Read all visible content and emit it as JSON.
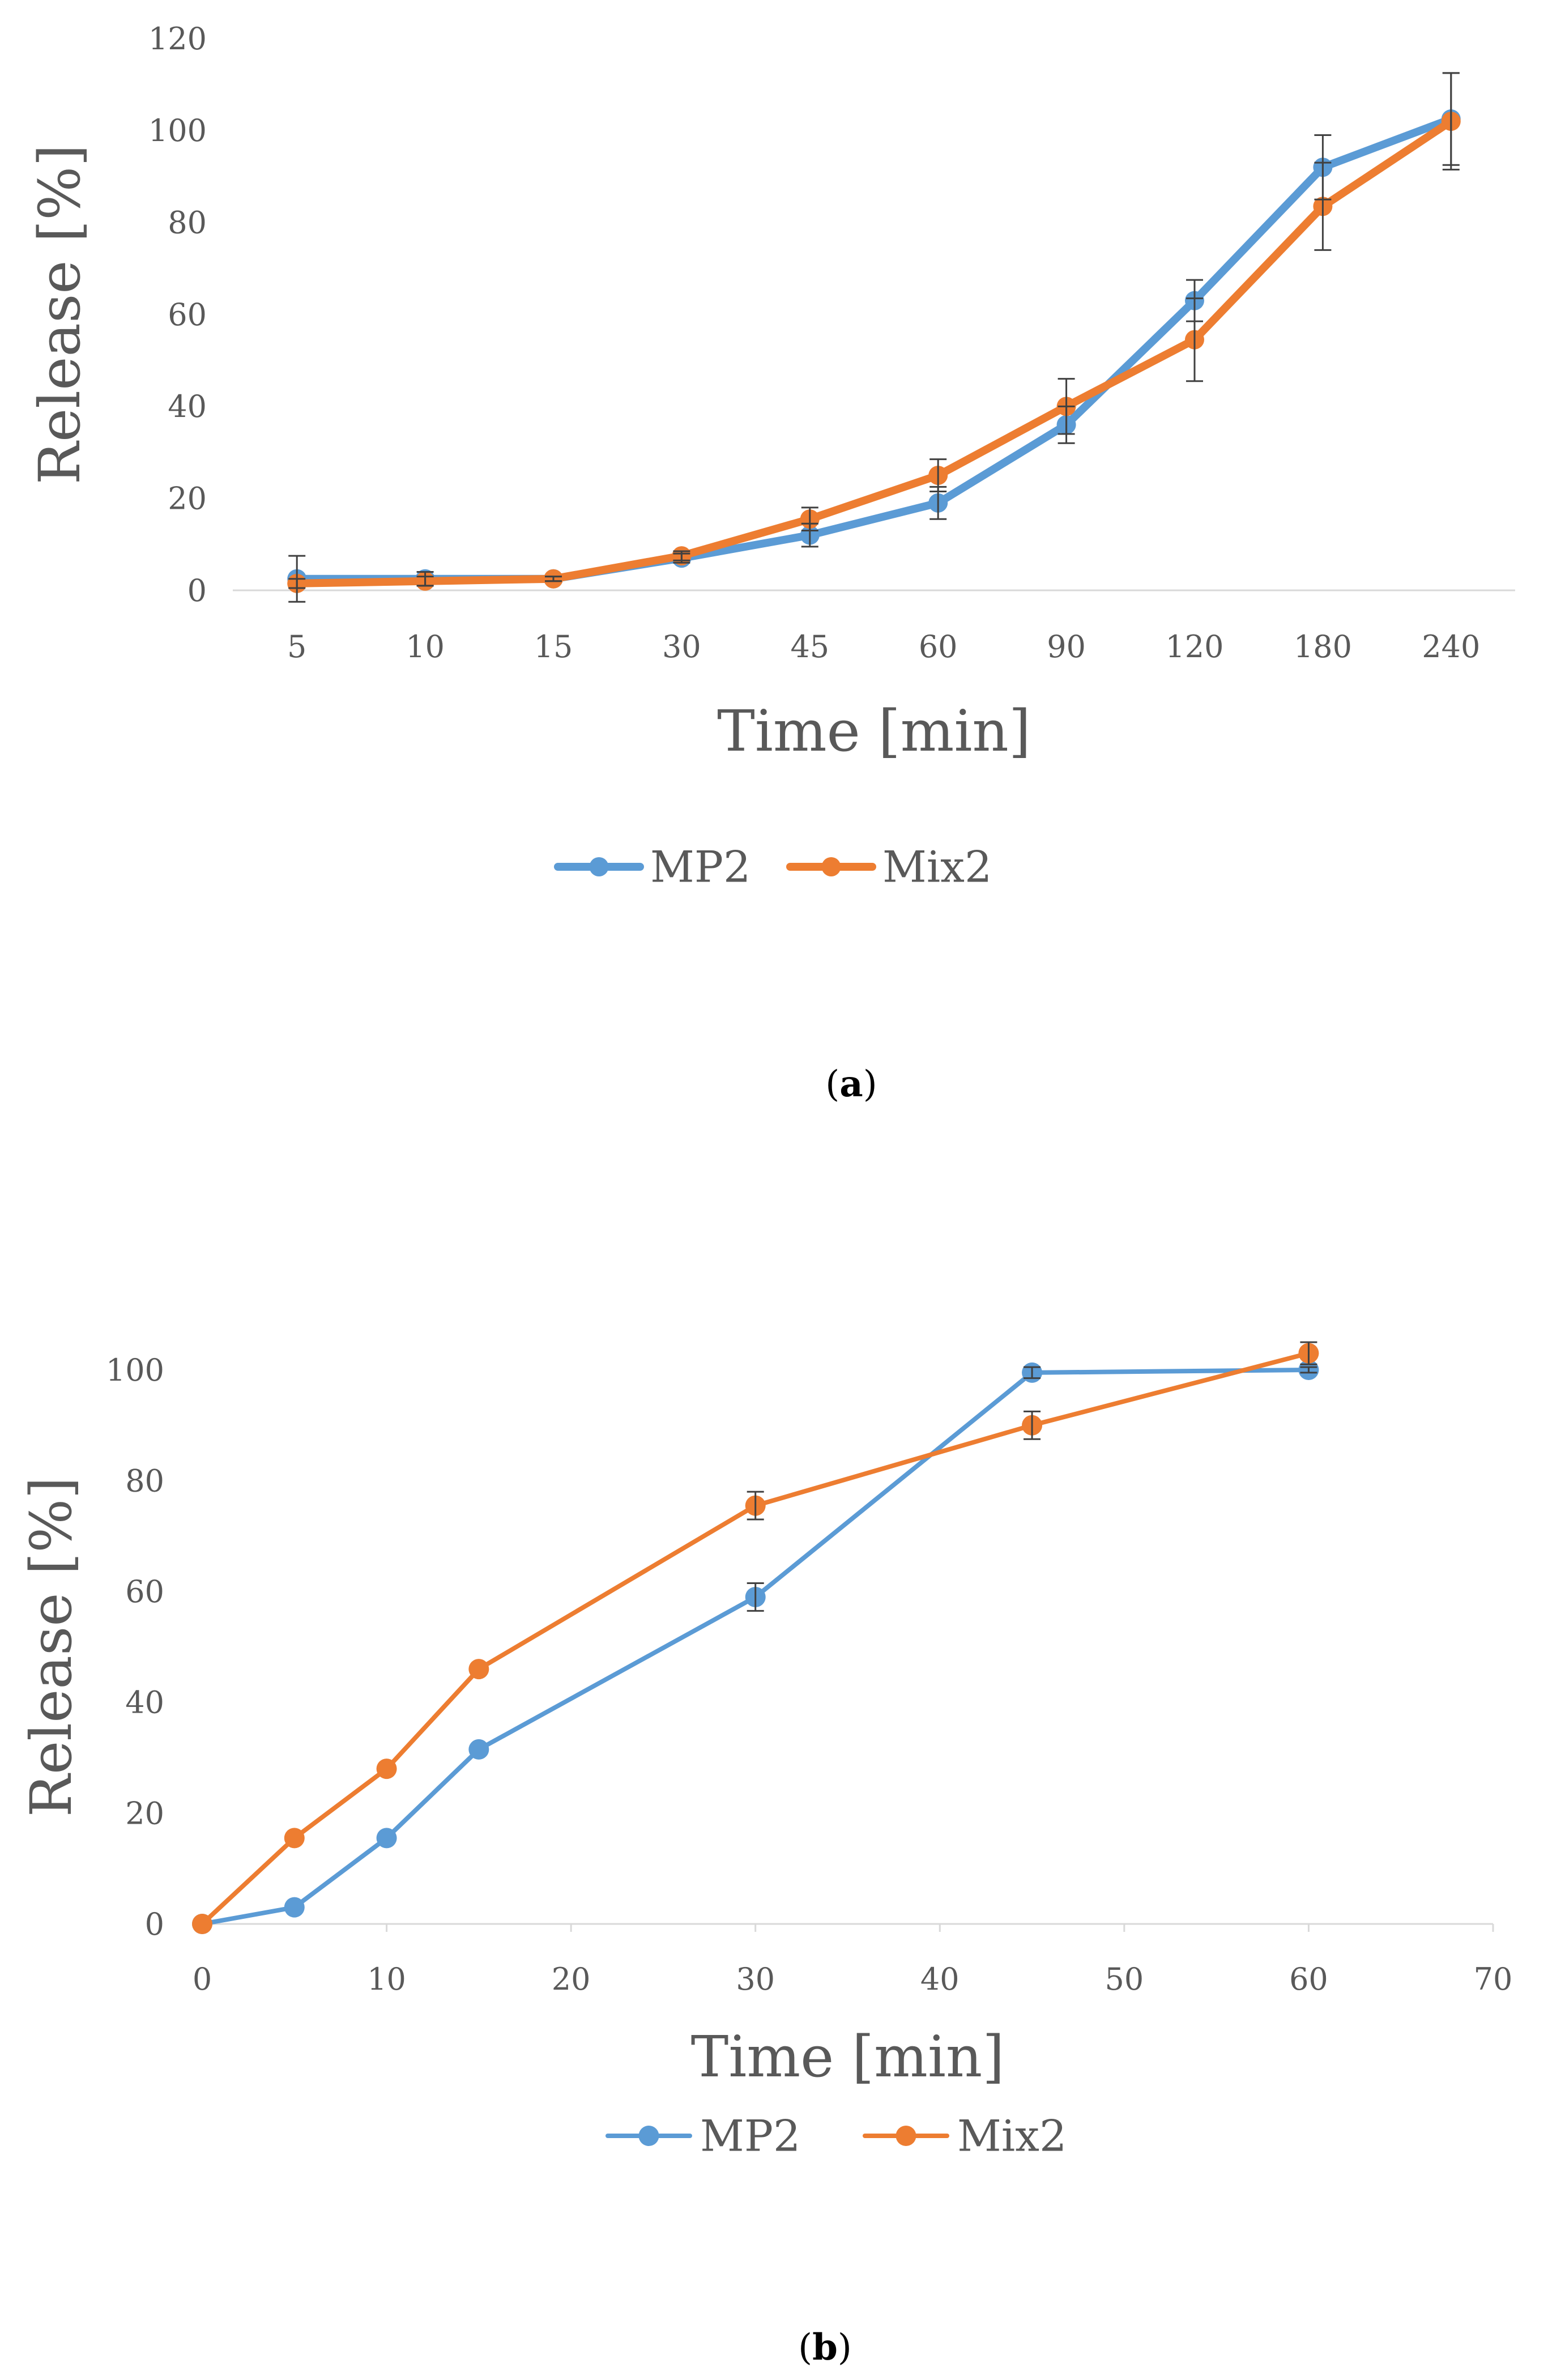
{
  "colors": {
    "mp2": "#5b9bd5",
    "mix2": "#ed7d31",
    "axis": "#d9d9d9",
    "tick_text": "#595959",
    "label_text": "#595959",
    "error_bar": "#404040",
    "caption": "#000000"
  },
  "chart_data": [
    {
      "id": "a",
      "type": "line",
      "x_scale": "category",
      "categories": [
        "5",
        "10",
        "15",
        "30",
        "45",
        "60",
        "90",
        "120",
        "180",
        "240"
      ],
      "ylim": [
        0,
        120
      ],
      "yticks": [
        "0",
        "20",
        "40",
        "60",
        "80",
        "100",
        "120"
      ],
      "xlabel": "Time [min]",
      "ylabel": "Release [%]",
      "grid": false,
      "legend": "bottom",
      "caption": {
        "open": "(",
        "letter": "a",
        "close": ")"
      },
      "series": [
        {
          "name": "MP2",
          "color_key": "mp2",
          "values": [
            2.5,
            2.5,
            2.5,
            7,
            12,
            19,
            36,
            63,
            92,
            102.5
          ],
          "errors": [
            5,
            1.5,
            0.5,
            1,
            2.5,
            3.5,
            4,
            4.5,
            7,
            10
          ]
        },
        {
          "name": "Mix2",
          "color_key": "mix2",
          "values": [
            1.5,
            2,
            2.5,
            7.5,
            15.5,
            25,
            40,
            54.5,
            83.5,
            102
          ],
          "errors": [
            1,
            1,
            0.5,
            1,
            2.5,
            3.5,
            6,
            9,
            9.5,
            10.5
          ]
        }
      ]
    },
    {
      "id": "b",
      "type": "line",
      "x_scale": "numeric",
      "xlim": [
        0,
        70
      ],
      "xticks": [
        "0",
        "10",
        "20",
        "30",
        "40",
        "50",
        "60",
        "70"
      ],
      "ylim": [
        0,
        100
      ],
      "yticks": [
        "0",
        "20",
        "40",
        "60",
        "80",
        "100"
      ],
      "xlabel": "Time [min]",
      "ylabel": "Release [%]",
      "grid": false,
      "legend": "bottom",
      "caption": {
        "open": "(",
        "letter": "b",
        "close": ")"
      },
      "series": [
        {
          "name": "MP2",
          "color_key": "mp2",
          "x": [
            0,
            5,
            10,
            15,
            30,
            45,
            60
          ],
          "values": [
            0,
            3,
            15.5,
            31.5,
            59,
            99.5,
            100
          ],
          "errors": [
            0,
            0,
            0,
            0,
            2.5,
            1,
            0.5
          ]
        },
        {
          "name": "Mix2",
          "color_key": "mix2",
          "x": [
            0,
            5,
            10,
            15,
            30,
            45,
            60
          ],
          "values": [
            0,
            15.5,
            28,
            46,
            75.5,
            90,
            103
          ],
          "errors": [
            0,
            0,
            0,
            0,
            2.5,
            2.5,
            2
          ]
        }
      ]
    }
  ]
}
